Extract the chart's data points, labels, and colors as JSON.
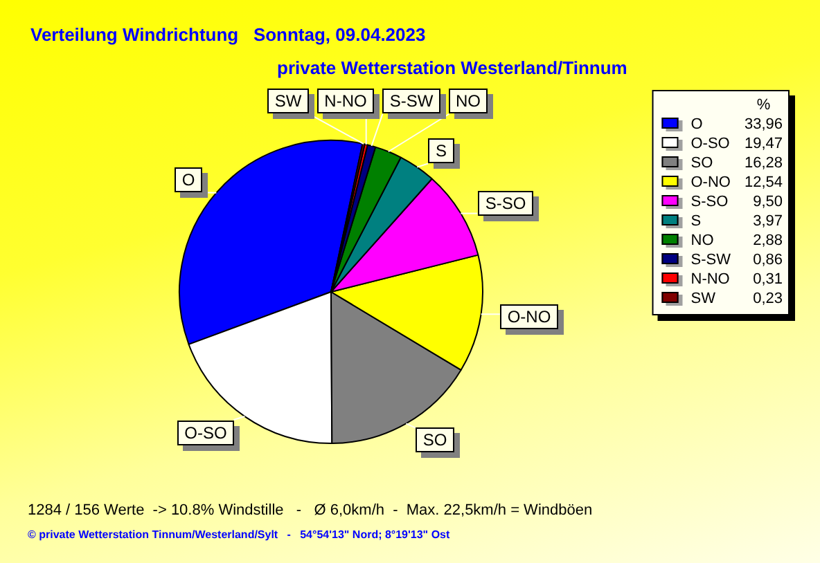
{
  "chart_data": {
    "type": "pie",
    "title": "Verteilung Windrichtung   Sonntag, 09.04.2023",
    "subtitle": "private Wetterstation Westerland/Tinnum",
    "categories": [
      "O",
      "O-SO",
      "SO",
      "O-NO",
      "S-SO",
      "S",
      "NO",
      "S-SW",
      "N-NO",
      "SW"
    ],
    "values": [
      33.96,
      19.47,
      16.28,
      12.54,
      9.5,
      3.97,
      2.88,
      0.86,
      0.31,
      0.23
    ],
    "colors": [
      "#0000ff",
      "#ffffff",
      "#808080",
      "#ffff00",
      "#ff00ff",
      "#008080",
      "#008000",
      "#000080",
      "#ff0000",
      "#800000"
    ],
    "value_labels": [
      "33,96",
      "19,47",
      "16,28",
      "12,54",
      "9,50",
      "3,97",
      "2,88",
      "0,86",
      "0,31",
      "0,23"
    ],
    "legend": "top right",
    "legend_title": "%",
    "annotations": [
      "1284 / 156 Werte  -> 10.8% Windstille   -   Ø 6,0km/h  -  Max. 22,5km/h = Windböen",
      "© private Wetterstation Tinnum/Westerland/Sylt   -   54°54'13\" Nord; 8°19'13\" Ost"
    ]
  }
}
